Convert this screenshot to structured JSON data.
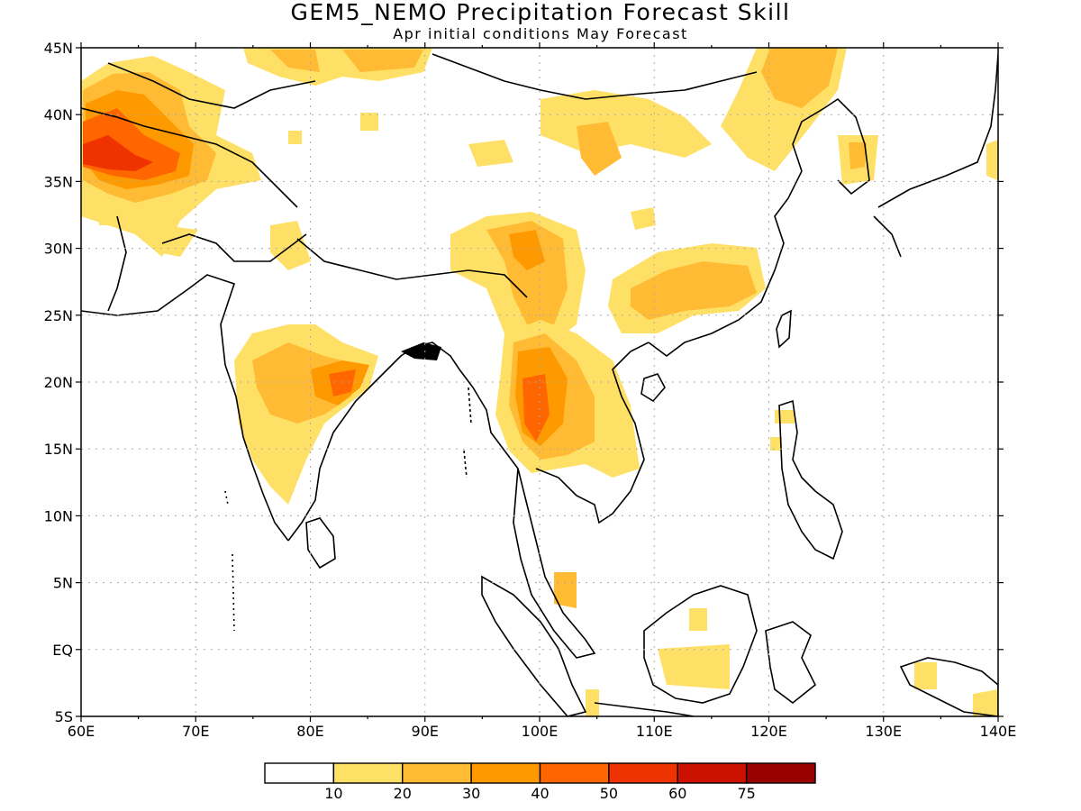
{
  "title": "GEM5_NEMO Precipitation Forecast Skill",
  "subtitle": "Apr initial conditions  May Forecast",
  "map": {
    "lon_range": [
      60,
      140
    ],
    "lat_range": [
      -5,
      45
    ],
    "lat_labels": [
      "45N",
      "40N",
      "35N",
      "30N",
      "25N",
      "20N",
      "15N",
      "10N",
      "5N",
      "EQ",
      "5S"
    ],
    "lon_labels": [
      "60E",
      "70E",
      "80E",
      "90E",
      "100E",
      "110E",
      "120E",
      "130E",
      "140E"
    ],
    "grid": "dotted"
  },
  "legend": {
    "colors": [
      "#ffffff",
      "#ffe066",
      "#ffbb33",
      "#ff9900",
      "#ff6600",
      "#ee3300",
      "#cc1100",
      "#990000"
    ],
    "labels": [
      "10",
      "20",
      "30",
      "40",
      "50",
      "60",
      "75"
    ]
  }
}
